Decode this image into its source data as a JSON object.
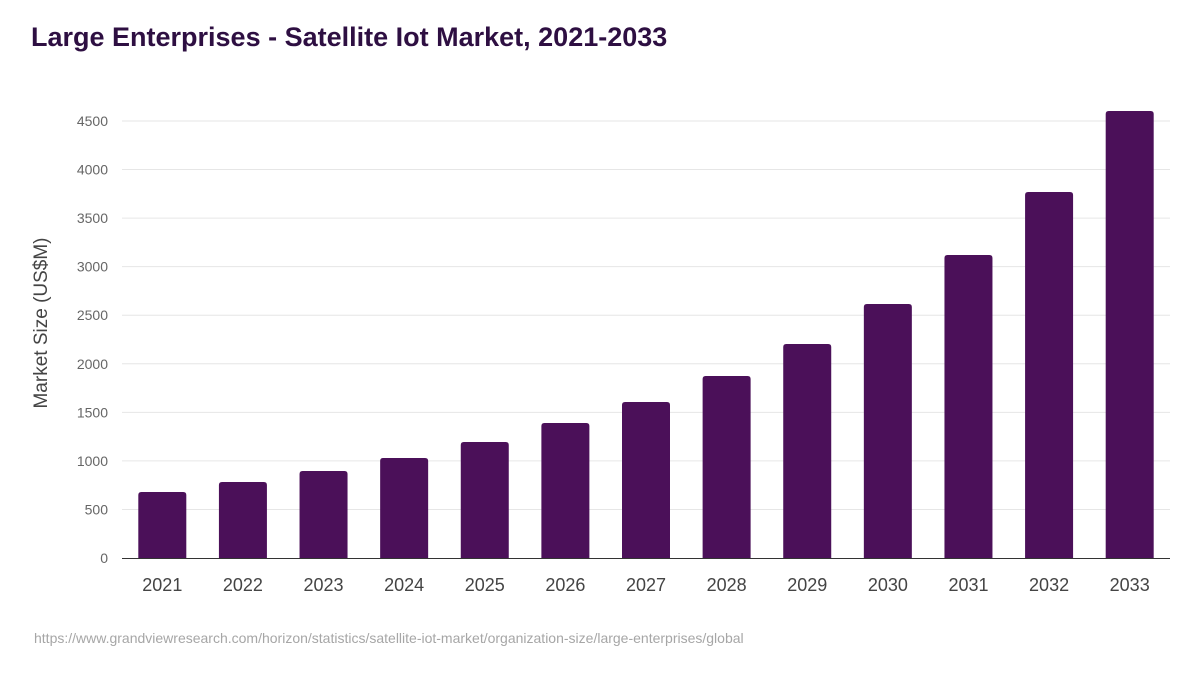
{
  "chart_data": {
    "type": "bar",
    "title": "Large Enterprises - Satellite Iot Market, 2021-2033",
    "xlabel": "",
    "ylabel": "Market Size (US$M)",
    "categories": [
      "2021",
      "2022",
      "2023",
      "2024",
      "2025",
      "2026",
      "2027",
      "2028",
      "2029",
      "2030",
      "2031",
      "2032",
      "2033"
    ],
    "values": [
      680,
      783,
      896,
      1030,
      1195,
      1390,
      1607,
      1874,
      2204,
      2616,
      3120,
      3769,
      4603
    ],
    "ylim": [
      0,
      4500
    ],
    "yticks": [
      0,
      500,
      1000,
      1500,
      2000,
      2500,
      3000,
      3500,
      4000,
      4500
    ],
    "grid": true,
    "legend": "none",
    "bar_color": "#4b1059"
  },
  "source": "https://www.grandviewresearch.com/horizon/statistics/satellite-iot-market/organization-size/large-enterprises/global"
}
